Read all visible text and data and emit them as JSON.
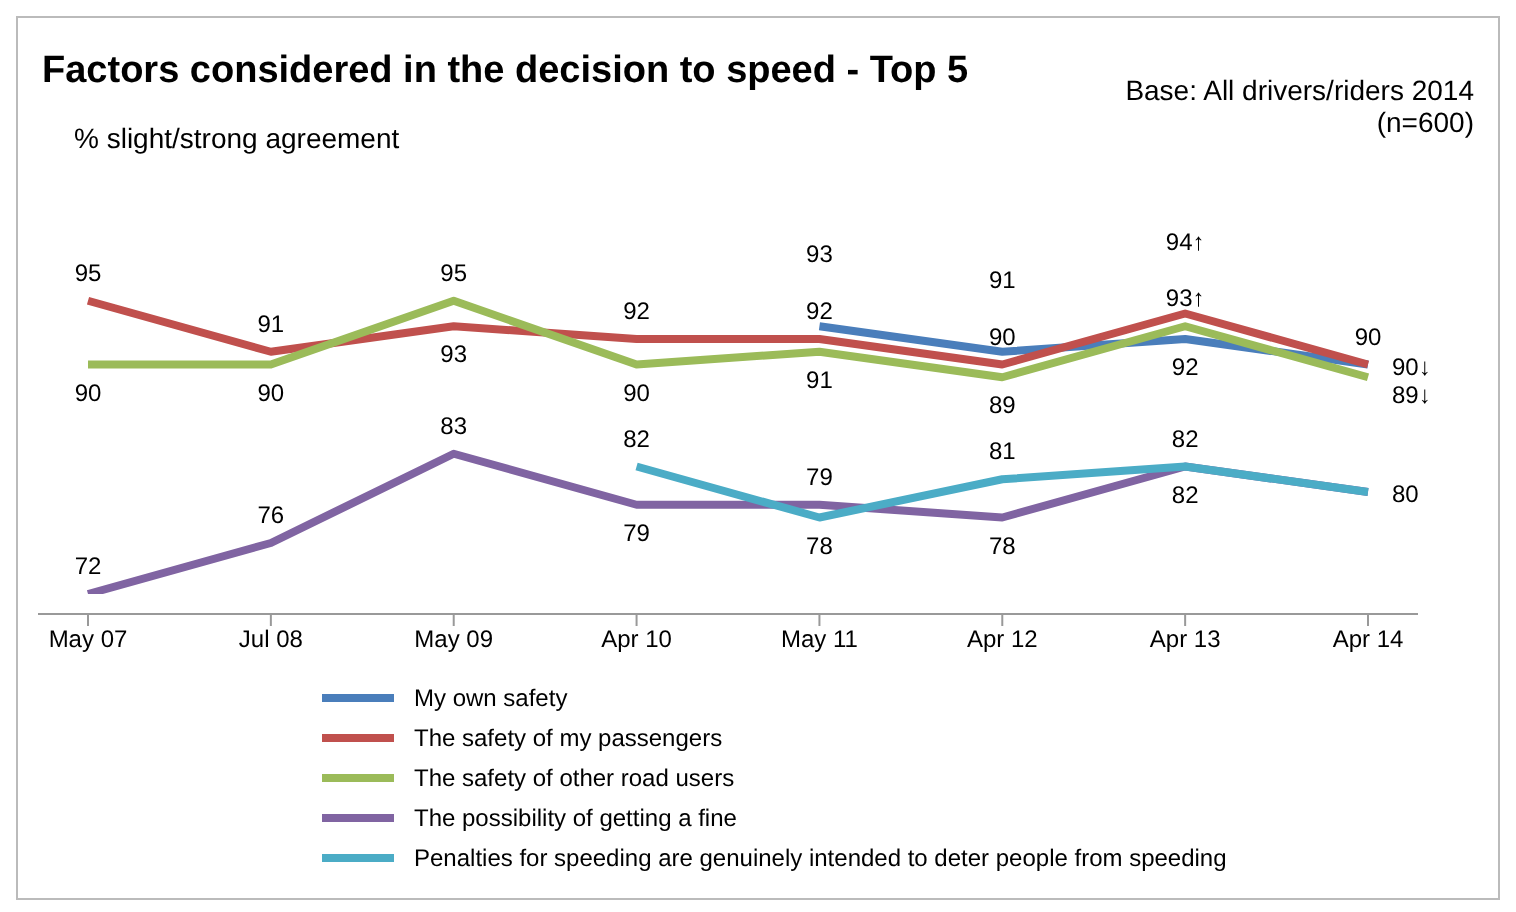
{
  "chart_data": {
    "type": "line",
    "title": "Factors considered in the decision to speed - Top 5",
    "annotations": [
      "% slight/strong agreement",
      "Base: All drivers/riders 2014",
      "(n=600)"
    ],
    "categories": [
      "May 07",
      "Jul 08",
      "May 09",
      "Apr 10",
      "May 11",
      "Apr 12",
      "Apr 13",
      "Apr 14"
    ],
    "series": [
      {
        "name": "My own safety",
        "color": "#4a7ebb",
        "values": [
          null,
          null,
          null,
          null,
          93,
          91,
          92,
          90
        ],
        "value_labels": [
          null,
          null,
          null,
          null,
          "93",
          "91",
          "92",
          "90"
        ]
      },
      {
        "name": "The safety of my passengers",
        "color": "#c0504d",
        "values": [
          95,
          91,
          93,
          92,
          92,
          90,
          94,
          90
        ],
        "value_labels": [
          "95",
          "91",
          "93",
          "92",
          "92",
          "90",
          "94↑",
          "90↓"
        ]
      },
      {
        "name": "The safety of other road users",
        "color": "#9bbb59",
        "values": [
          90,
          90,
          95,
          90,
          91,
          89,
          93,
          89
        ],
        "value_labels": [
          "90",
          "90",
          "95",
          "90",
          "91",
          "89",
          "93↑",
          "89↓"
        ]
      },
      {
        "name": "The possibility of getting a fine",
        "color": "#8064a2",
        "values": [
          72,
          76,
          83,
          79,
          79,
          78,
          82,
          80
        ],
        "value_labels": [
          "72",
          "76",
          "83",
          "79",
          "79",
          "78",
          "82",
          "80"
        ]
      },
      {
        "name": "Penalties for speeding are genuinely intended to deter people from speeding",
        "color": "#4bacc6",
        "values": [
          null,
          null,
          null,
          82,
          78,
          81,
          82,
          80
        ],
        "value_labels": [
          null,
          null,
          null,
          "82",
          "78",
          "81",
          "82",
          null
        ]
      }
    ],
    "tick_labels": "x",
    "legend": "bottom",
    "marker": "none",
    "line_style": "solid",
    "grid": false
  }
}
